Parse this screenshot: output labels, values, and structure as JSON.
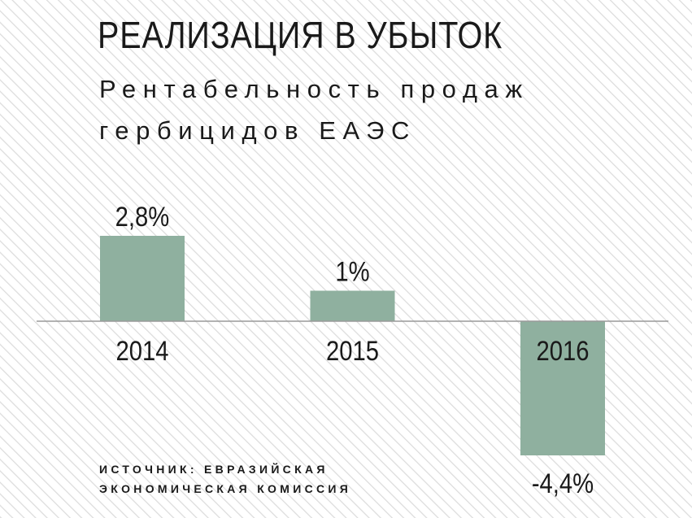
{
  "chart_data": {
    "type": "bar",
    "title": "РЕАЛИЗАЦИЯ В УБЫТОК",
    "subtitle": "Рентабельность продаж гербицидов ЕАЭС",
    "categories": [
      "2014",
      "2015",
      "2016"
    ],
    "values": [
      2.8,
      1,
      -4.4
    ],
    "value_labels": [
      "2,8%",
      "1%",
      "-4,4%"
    ],
    "color": "#8fb09f",
    "source": "ИСТОЧНИК: ЕВРАЗИЙСКАЯ ЭКОНОМИЧЕСКАЯ КОМИССИЯ"
  }
}
